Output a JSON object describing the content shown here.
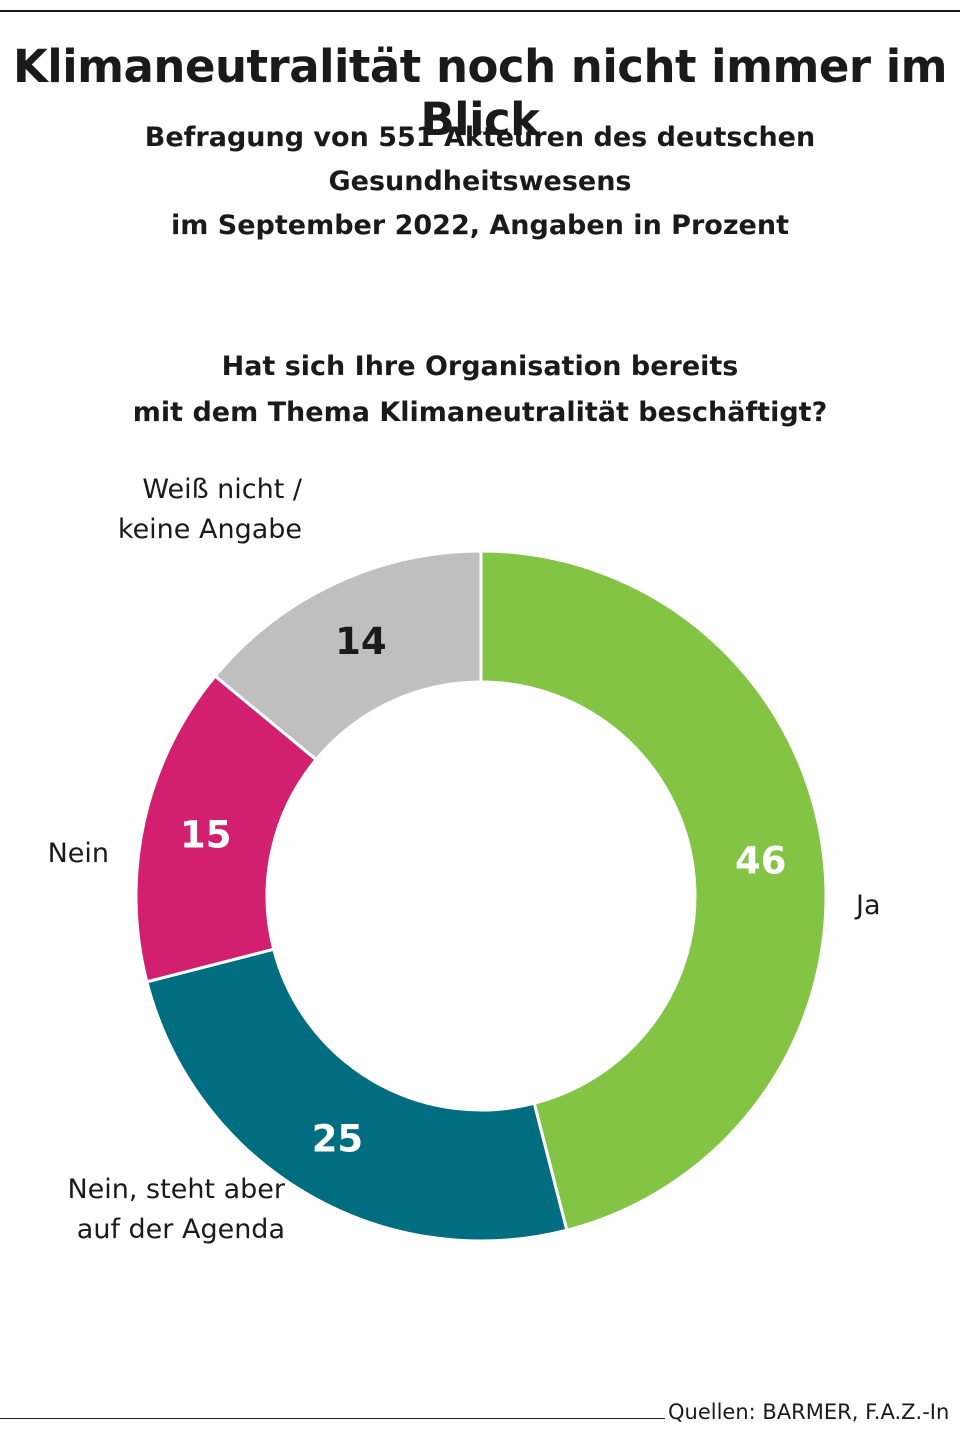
{
  "title": "Klimaneutralität noch nicht immer im Blick",
  "subtitle_line1": "Befragung von 551 Akteuren des deutschen Gesundheitswesens",
  "subtitle_line2": "im September 2022, Angaben in Prozent",
  "question_line1": "Hat sich Ihre Organisation bereits",
  "question_line2": "mit dem Thema Klimaneutralität beschäftigt?",
  "source": "Quellen: BARMER, F.A.Z.-In",
  "chart_data": {
    "type": "pie",
    "variant": "donut",
    "unit": "Prozent",
    "start": "top, clockwise",
    "slices": [
      {
        "key": "ja",
        "label_lines": [
          "Ja"
        ],
        "value": 46,
        "color": "#84c444",
        "value_color": "#ffffff"
      },
      {
        "key": "nein-agenda",
        "label_lines": [
          "Nein, steht aber",
          "auf der Agenda"
        ],
        "value": 25,
        "color": "#006e80",
        "value_color": "#ffffff"
      },
      {
        "key": "nein",
        "label_lines": [
          "Nein"
        ],
        "value": 15,
        "color": "#d31f6f",
        "value_color": "#ffffff"
      },
      {
        "key": "weiss-nicht",
        "label_lines": [
          "Weiß nicht /",
          "keine Angabe"
        ],
        "value": 14,
        "color": "#bfbfbf",
        "value_color": "#1a1a1a"
      }
    ]
  }
}
